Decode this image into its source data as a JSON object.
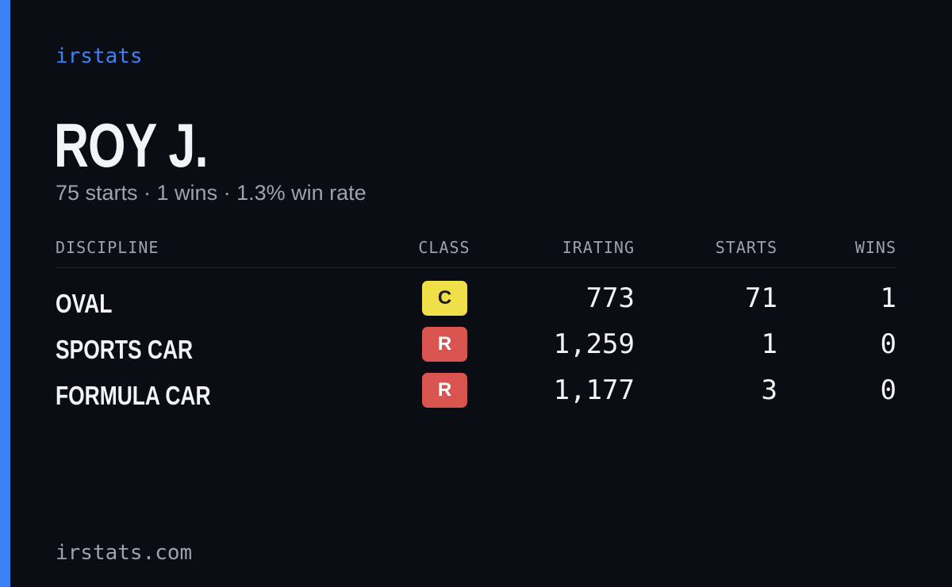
{
  "brand": "irstats",
  "driver": {
    "name": "ROY J.",
    "summary": "75 starts · 1 wins · 1.3% win rate"
  },
  "table": {
    "headers": [
      "DISCIPLINE",
      "CLASS",
      "IRATING",
      "STARTS",
      "WINS"
    ],
    "rows": [
      {
        "discipline": "OVAL",
        "class": "C",
        "class_color": "#efe04a",
        "class_text_color": "#1a1a1a",
        "irating": "773",
        "starts": "71",
        "wins": "1"
      },
      {
        "discipline": "SPORTS CAR",
        "class": "R",
        "class_color": "#d9534f",
        "class_text_color": "#ffffff",
        "irating": "1,259",
        "starts": "1",
        "wins": "0"
      },
      {
        "discipline": "FORMULA CAR",
        "class": "R",
        "class_color": "#d9534f",
        "class_text_color": "#ffffff",
        "irating": "1,177",
        "starts": "3",
        "wins": "0"
      }
    ]
  },
  "footer": "irstats.com"
}
